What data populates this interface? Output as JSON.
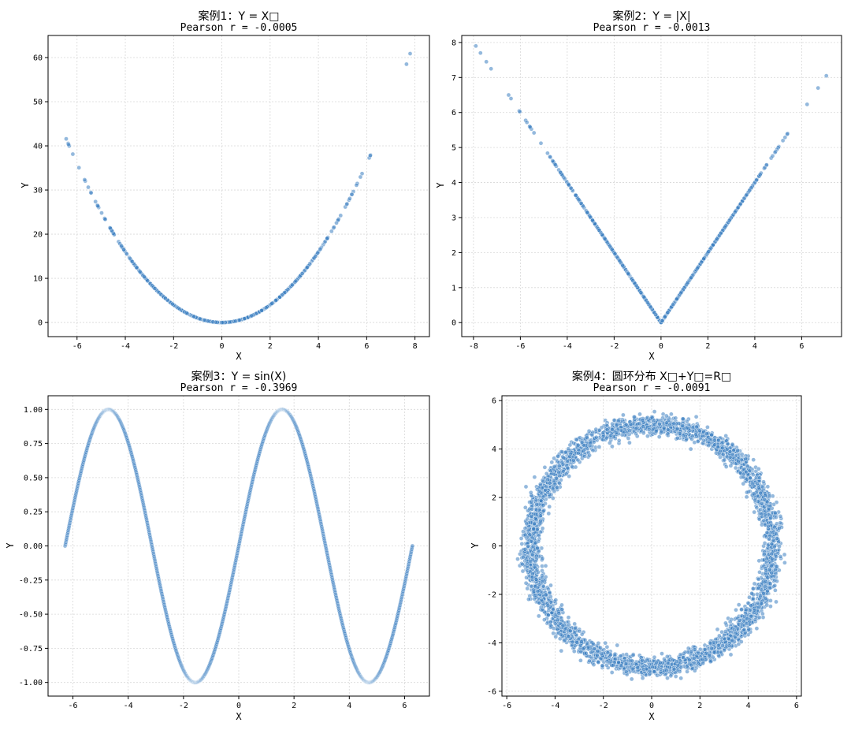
{
  "colors": {
    "point_fill": "#3d7fc1",
    "point_edge": "#ffffff"
  },
  "chart_data": [
    {
      "type": "scatter",
      "title": "案例1：Y = X□",
      "subtitle": "Pearson r = -0.0005",
      "xlabel": "X",
      "ylabel": "Y",
      "xlim": [
        -7.2,
        8.6
      ],
      "ylim": [
        -3.2,
        65
      ],
      "xticks": [
        -6,
        -4,
        -2,
        0,
        2,
        4,
        6,
        8
      ],
      "yticks": [
        0,
        10,
        20,
        30,
        40,
        50,
        60
      ],
      "grid": true,
      "relation": "square",
      "x_range": [
        -6.5,
        6.5
      ],
      "n_points": 1000,
      "extra_points": [
        [
          -6.45,
          41.6
        ],
        [
          -6.35,
          40.3
        ],
        [
          7.65,
          58.5
        ],
        [
          7.8,
          60.9
        ]
      ]
    },
    {
      "type": "scatter",
      "title": "案例2：Y = |X|",
      "subtitle": "Pearson r = -0.0013",
      "xlabel": "X",
      "ylabel": "Y",
      "xlim": [
        -8.5,
        7.7
      ],
      "ylim": [
        -0.4,
        8.2
      ],
      "xticks": [
        -8,
        -6,
        -4,
        -2,
        0,
        2,
        4,
        6
      ],
      "yticks": [
        0,
        1,
        2,
        3,
        4,
        5,
        6,
        7,
        8
      ],
      "grid": true,
      "relation": "abs",
      "x_range": [
        -6.3,
        6.3
      ],
      "n_points": 1000,
      "extra_points": [
        [
          -7.9,
          7.9
        ],
        [
          -7.7,
          7.7
        ],
        [
          -7.45,
          7.45
        ],
        [
          -7.25,
          7.25
        ],
        [
          -6.5,
          6.5
        ],
        [
          -6.4,
          6.4
        ],
        [
          6.7,
          6.7
        ],
        [
          7.05,
          7.05
        ]
      ]
    },
    {
      "type": "scatter",
      "title": "案例3：Y = sin(X)",
      "subtitle": "Pearson r = -0.3969",
      "xlabel": "X",
      "ylabel": "Y",
      "xlim": [
        -6.9,
        6.9
      ],
      "ylim": [
        -1.1,
        1.1
      ],
      "xticks": [
        -6,
        -4,
        -2,
        0,
        2,
        4,
        6
      ],
      "yticks": [
        -1.0,
        -0.75,
        -0.5,
        -0.25,
        0.0,
        0.25,
        0.5,
        0.75,
        1.0
      ],
      "ytick_labels": [
        "-1.00",
        "-0.75",
        "-0.50",
        "-0.25",
        "0.00",
        "0.25",
        "0.50",
        "0.75",
        "1.00"
      ],
      "grid": true,
      "relation": "sin",
      "x_range": [
        -6.283,
        6.283
      ],
      "n_points": 1000,
      "extra_points": []
    },
    {
      "type": "scatter",
      "title": "案例4：圆环分布 X□+Y□=R□",
      "subtitle": "Pearson r = -0.0091",
      "xlabel": "X",
      "ylabel": "Y",
      "xlim": [
        -6.2,
        6.2
      ],
      "ylim": [
        -6.2,
        6.2
      ],
      "xticks": [
        -6,
        -4,
        -2,
        0,
        2,
        4,
        6
      ],
      "yticks": [
        -6,
        -4,
        -2,
        0,
        2,
        4,
        6
      ],
      "grid": true,
      "relation": "ring",
      "radius": 5,
      "radius_spread": 0.2,
      "n_points": 3500,
      "extra_points": []
    }
  ]
}
